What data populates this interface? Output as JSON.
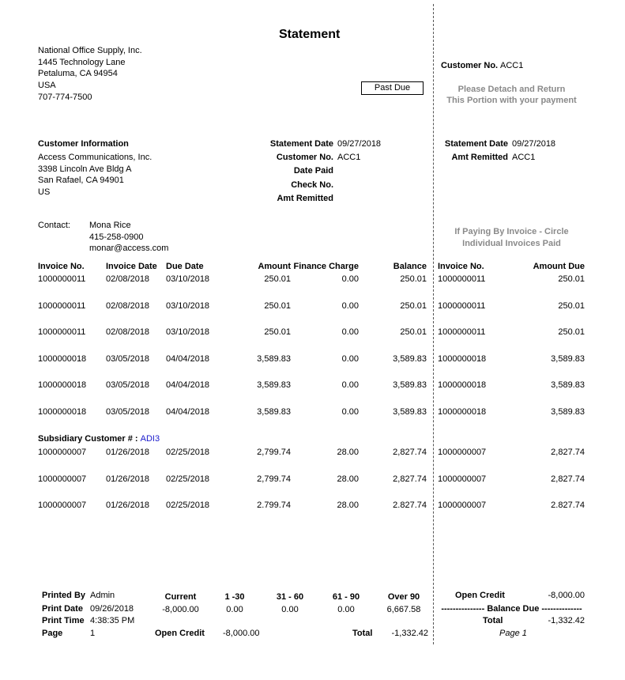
{
  "title": "Statement",
  "company": {
    "name": "National Office Supply, Inc.",
    "address1": "1445 Technology Lane",
    "city": "Petaluma, CA 94954",
    "country": "USA",
    "phone": "707-774-7500"
  },
  "past_due_label": "Past Due",
  "remit": {
    "customer_no_label": "Customer No.",
    "customer_no": "ACC1",
    "detach_line1": "Please Detach and Return",
    "detach_line2": "This Portion with your payment",
    "statement_date_label": "Statement Date",
    "statement_date": "09/27/2018",
    "amt_remitted_label": "Amt Remitted",
    "amt_remitted": "ACC1",
    "circle_line1": "If Paying By Invoice - Circle",
    "circle_line2": "Individual Invoices Paid"
  },
  "customer": {
    "heading": "Customer Information",
    "name": "Access Communications, Inc.",
    "address1": "3398 Lincoln Ave Bldg A",
    "city": "San Rafael, CA 94901",
    "country": "US",
    "contact_label": "Contact:",
    "contact_name": "Mona Rice",
    "contact_phone": "415-258-0900",
    "contact_email": "monar@access.com"
  },
  "statement_info": {
    "statement_date_label": "Statement Date",
    "statement_date": "09/27/2018",
    "customer_no_label": "Customer No.",
    "customer_no": "ACC1",
    "date_paid_label": "Date Paid",
    "check_no_label": "Check No.",
    "amt_remitted_label": "Amt Remitted"
  },
  "columns": {
    "invoice_no": "Invoice No.",
    "invoice_date": "Invoice Date",
    "due_date": "Due Date",
    "amount": "Amount",
    "finance_charge": "Finance Charge",
    "balance": "Balance",
    "remit_invoice_no": "Invoice No.",
    "amount_due": "Amount Due"
  },
  "rows": [
    [
      "1000000011",
      "02/08/2018",
      "03/10/2018",
      "250.01",
      "0.00",
      "250.01",
      "1000000011",
      "250.01"
    ],
    [
      "1000000011",
      "02/08/2018",
      "03/10/2018",
      "250.01",
      "0.00",
      "250.01",
      "1000000011",
      "250.01"
    ],
    [
      "1000000011",
      "02/08/2018",
      "03/10/2018",
      "250.01",
      "0.00",
      "250.01",
      "1000000011",
      "250.01"
    ],
    [
      "1000000018",
      "03/05/2018",
      "04/04/2018",
      "3,589.83",
      "0.00",
      "3,589.83",
      "1000000018",
      "3,589.83"
    ],
    [
      "1000000018",
      "03/05/2018",
      "04/04/2018",
      "3,589.83",
      "0.00",
      "3,589.83",
      "1000000018",
      "3,589.83"
    ],
    [
      "1000000018",
      "03/05/2018",
      "04/04/2018",
      "3,589.83",
      "0.00",
      "3,589.83",
      "1000000018",
      "3,589.83"
    ]
  ],
  "subsidiary": {
    "label": "Subsidiary Customer # :",
    "value": "ADI3",
    "color": "#1a1acc"
  },
  "sub_rows": [
    [
      "1000000007",
      "01/26/2018",
      "02/25/2018",
      "2,799.74",
      "28.00",
      "2,827.74",
      "1000000007",
      "2,827.74"
    ],
    [
      "1000000007",
      "01/26/2018",
      "02/25/2018",
      "2,799.74",
      "28.00",
      "2,827.74",
      "1000000007",
      "2,827.74"
    ],
    [
      "1000000007",
      "01/26/2018",
      "02/25/2018",
      "2.799.74",
      "28.00",
      "2.827.74",
      "1000000007",
      "2.827.74"
    ]
  ],
  "footer": {
    "printed_by_label": "Printed By",
    "printed_by": "Admin",
    "print_date_label": "Print Date",
    "print_date": "09/26/2018",
    "print_time_label": "Print Time",
    "print_time": "4:38:35 PM",
    "page_label": "Page",
    "page": "1",
    "aging_headers": [
      "Current",
      "1 -30",
      "31 - 60",
      "61 - 90",
      "Over 90"
    ],
    "aging_values": [
      "-8,000.00",
      "0.00",
      "0.00",
      "0.00",
      "6,667.58"
    ],
    "open_credit_label": "Open Credit",
    "open_credit": "-8,000.00",
    "total_label": "Total",
    "total": "-1,332.42",
    "remit_open_credit_label": "Open Credit",
    "remit_open_credit": "-8,000.00",
    "balance_due_label": "--------------- Balance Due --------------",
    "remit_total_label": "Total",
    "remit_total": "-1,332.42",
    "remit_page": "Page 1"
  }
}
